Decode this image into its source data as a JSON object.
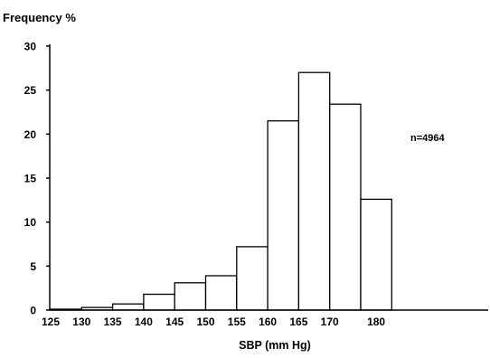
{
  "chart_data": {
    "type": "bar",
    "title": "",
    "ylabel": "Frequency %",
    "xlabel": "SBP (mm Hg)",
    "annotation": "n=4964",
    "ylim": [
      0,
      30
    ],
    "yticks": [
      0,
      5,
      10,
      15,
      20,
      25,
      30
    ],
    "bin_edges": [
      125,
      130,
      135,
      140,
      145,
      150,
      155,
      160,
      165,
      170,
      175,
      180
    ],
    "xtick_labels": [
      "125",
      "130",
      "135",
      "140",
      "145",
      "150",
      "155",
      "160",
      "165",
      "170",
      "180"
    ],
    "values": [
      0.1,
      0.3,
      0.7,
      1.8,
      3.1,
      3.9,
      7.2,
      21.5,
      27.0,
      23.4,
      12.6
    ],
    "grid": false,
    "legend": "none"
  }
}
